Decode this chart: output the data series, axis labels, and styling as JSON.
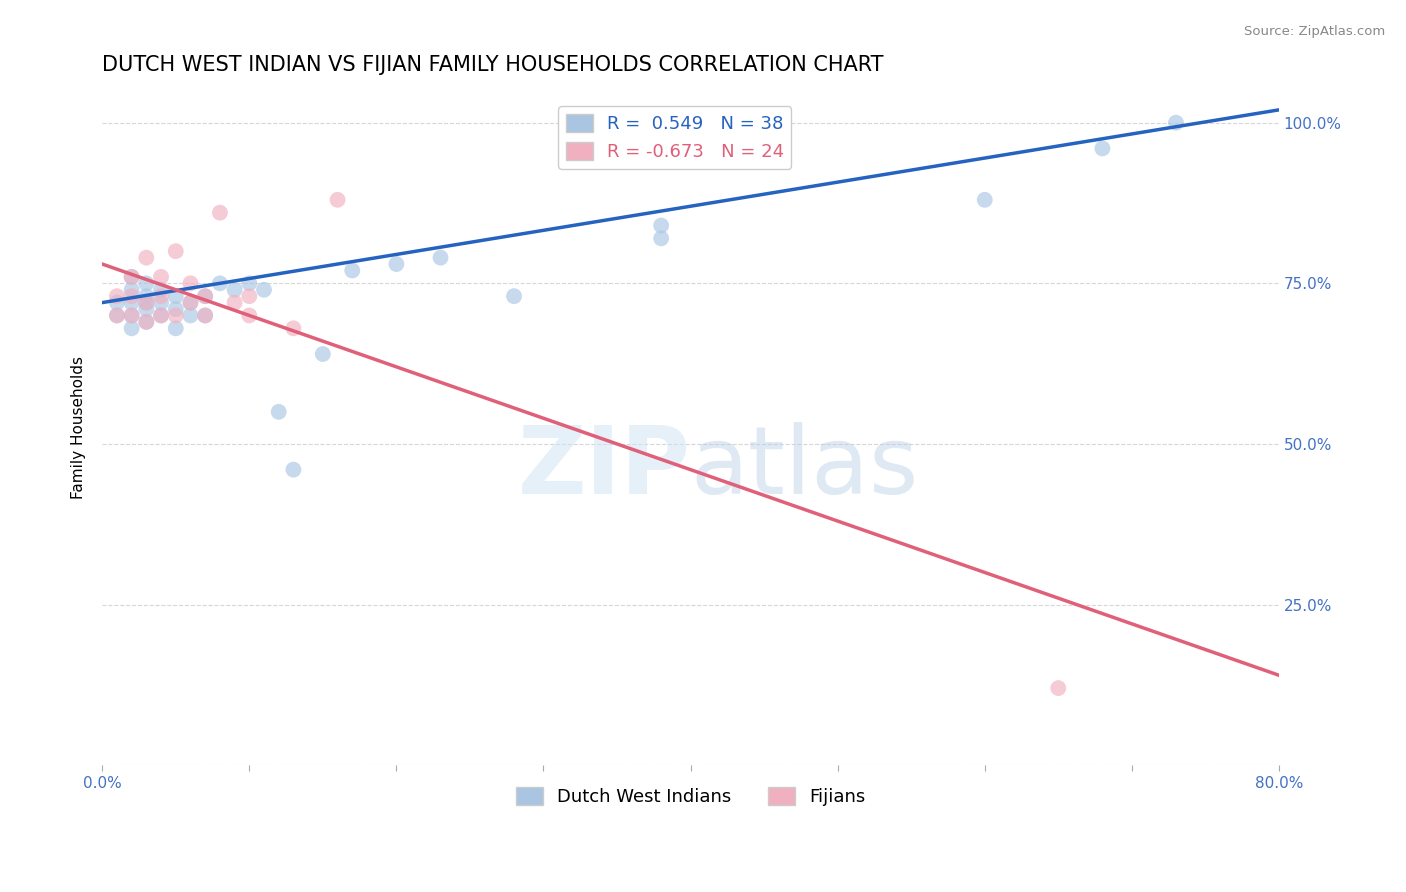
{
  "title": "DUTCH WEST INDIAN VS FIJIAN FAMILY HOUSEHOLDS CORRELATION CHART",
  "source": "Source: ZipAtlas.com",
  "ylabel": "Family Households",
  "xlim": [
    0.0,
    0.8
  ],
  "ylim": [
    0.0,
    1.05
  ],
  "xtick_positions": [
    0.0,
    0.1,
    0.2,
    0.3,
    0.4,
    0.5,
    0.6,
    0.7,
    0.8
  ],
  "ytick_positions": [
    0.0,
    0.25,
    0.5,
    0.75,
    1.0
  ],
  "grid_color": "#cccccc",
  "background_color": "#ffffff",
  "watermark_text": "ZIPatlas",
  "legend_r_blue": "0.549",
  "legend_n_blue": "38",
  "legend_r_pink": "-0.673",
  "legend_n_pink": "24",
  "blue_scatter_x": [
    0.01,
    0.01,
    0.02,
    0.02,
    0.02,
    0.02,
    0.02,
    0.03,
    0.03,
    0.03,
    0.03,
    0.03,
    0.04,
    0.04,
    0.04,
    0.05,
    0.05,
    0.05,
    0.06,
    0.06,
    0.07,
    0.07,
    0.08,
    0.09,
    0.1,
    0.11,
    0.12,
    0.13,
    0.15,
    0.17,
    0.2,
    0.23,
    0.28,
    0.38,
    0.38,
    0.6,
    0.68,
    0.73
  ],
  "blue_scatter_y": [
    0.7,
    0.72,
    0.68,
    0.7,
    0.72,
    0.74,
    0.76,
    0.69,
    0.71,
    0.72,
    0.73,
    0.75,
    0.7,
    0.72,
    0.74,
    0.68,
    0.71,
    0.73,
    0.7,
    0.72,
    0.7,
    0.73,
    0.75,
    0.74,
    0.75,
    0.74,
    0.55,
    0.46,
    0.64,
    0.77,
    0.78,
    0.79,
    0.73,
    0.82,
    0.84,
    0.88,
    0.96,
    1.0
  ],
  "pink_scatter_x": [
    0.01,
    0.01,
    0.02,
    0.02,
    0.02,
    0.03,
    0.03,
    0.03,
    0.04,
    0.04,
    0.04,
    0.05,
    0.05,
    0.06,
    0.06,
    0.07,
    0.07,
    0.08,
    0.09,
    0.1,
    0.1,
    0.13,
    0.16,
    0.65
  ],
  "pink_scatter_y": [
    0.7,
    0.73,
    0.7,
    0.73,
    0.76,
    0.69,
    0.72,
    0.79,
    0.7,
    0.73,
    0.76,
    0.7,
    0.8,
    0.72,
    0.75,
    0.7,
    0.73,
    0.86,
    0.72,
    0.7,
    0.73,
    0.68,
    0.88,
    0.12
  ],
  "blue_line_x0": 0.0,
  "blue_line_y0": 0.72,
  "blue_line_x1": 0.8,
  "blue_line_y1": 1.02,
  "pink_line_x0": 0.0,
  "pink_line_y0": 0.78,
  "pink_line_x1": 0.8,
  "pink_line_y1": 0.14,
  "blue_color": "#aac5e2",
  "blue_line_color": "#2563c0",
  "pink_color": "#f0b0c0",
  "pink_line_color": "#e0607a",
  "scatter_size": 130,
  "scatter_alpha": 0.65,
  "title_fontsize": 15,
  "label_fontsize": 11,
  "tick_fontsize": 11,
  "legend_fontsize": 13,
  "tick_color": "#4472c4"
}
